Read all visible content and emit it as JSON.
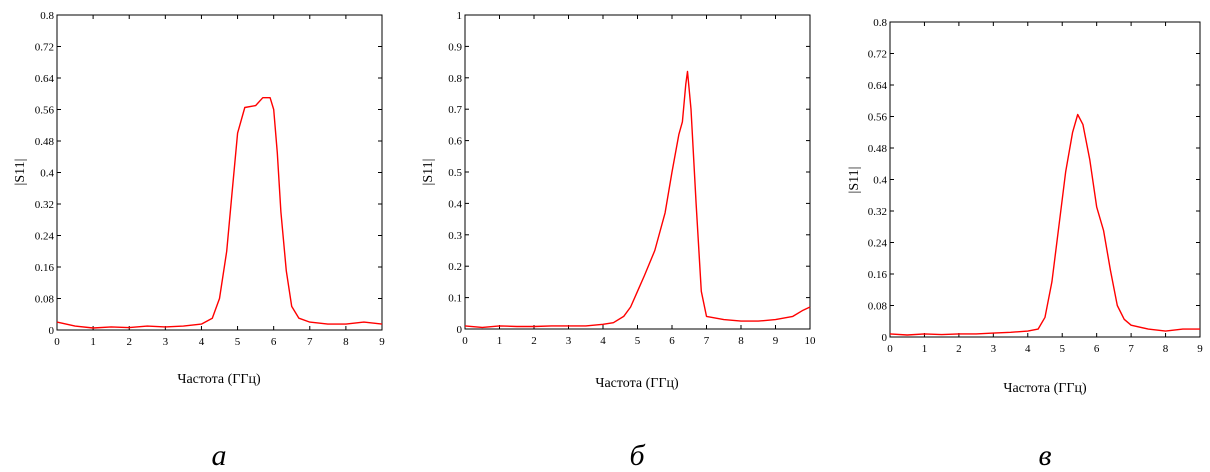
{
  "colors": {
    "curve": "#ff0000",
    "axes": "#000000"
  },
  "chart_data": [
    {
      "type": "line",
      "caption": "а",
      "xlabel": "Частота (ГГц)",
      "ylabel": "|S11|",
      "xlim": [
        0,
        9
      ],
      "ylim": [
        0,
        0.8
      ],
      "xticks": [
        0,
        1,
        2,
        3,
        4,
        5,
        6,
        7,
        8,
        9
      ],
      "yticks": [
        0,
        0.08,
        0.16,
        0.24,
        0.32,
        0.4,
        0.48,
        0.56,
        0.64,
        0.72,
        0.8
      ],
      "xtick_labels": [
        "0",
        "1",
        "2",
        "3",
        "4",
        "5",
        "6",
        "7",
        "8",
        "9"
      ],
      "ytick_labels": [
        "0",
        "0.08",
        "0.16",
        "0.24",
        "0.32",
        "0.4",
        "0.48",
        "0.56",
        "0.64",
        "0.72",
        "0.8"
      ],
      "grid": false,
      "series": [
        {
          "x": [
            0,
            0.5,
            1,
            1.5,
            2,
            2.5,
            3,
            3.5,
            4,
            4.3,
            4.5,
            4.7,
            4.85,
            5.0,
            5.2,
            5.5,
            5.7,
            5.9,
            6.0,
            6.1,
            6.2,
            6.35,
            6.5,
            6.7,
            7,
            7.5,
            8,
            8.5,
            9
          ],
          "y": [
            0.02,
            0.01,
            0.005,
            0.008,
            0.006,
            0.01,
            0.008,
            0.01,
            0.015,
            0.03,
            0.08,
            0.2,
            0.35,
            0.5,
            0.565,
            0.57,
            0.59,
            0.59,
            0.56,
            0.45,
            0.3,
            0.15,
            0.06,
            0.03,
            0.02,
            0.015,
            0.015,
            0.02,
            0.015
          ]
        }
      ]
    },
    {
      "type": "line",
      "caption": "б",
      "xlabel": "Частота (ГГц)",
      "ylabel": "|S11|",
      "xlim": [
        0,
        10
      ],
      "ylim": [
        0,
        1
      ],
      "xticks": [
        0,
        1,
        2,
        3,
        4,
        5,
        6,
        7,
        8,
        9,
        10
      ],
      "yticks": [
        0,
        0.1,
        0.2,
        0.3,
        0.4,
        0.5,
        0.6,
        0.7,
        0.8,
        0.9,
        1
      ],
      "xtick_labels": [
        "0",
        "1",
        "2",
        "3",
        "4",
        "5",
        "6",
        "7",
        "8",
        "9",
        "10"
      ],
      "ytick_labels": [
        "0",
        "0.1",
        "0.2",
        "0.3",
        "0.4",
        "0.5",
        "0.6",
        "0.7",
        "0.8",
        "0.9",
        "1"
      ],
      "grid": false,
      "series": [
        {
          "x": [
            0,
            0.5,
            1,
            1.5,
            2,
            2.5,
            3,
            3.5,
            4,
            4.3,
            4.6,
            4.8,
            5.0,
            5.2,
            5.5,
            5.8,
            6.0,
            6.2,
            6.3,
            6.4,
            6.45,
            6.55,
            6.7,
            6.85,
            7.0,
            7.5,
            8,
            8.5,
            9,
            9.5,
            9.8,
            10
          ],
          "y": [
            0.01,
            0.005,
            0.01,
            0.008,
            0.008,
            0.01,
            0.01,
            0.01,
            0.015,
            0.02,
            0.04,
            0.07,
            0.12,
            0.17,
            0.25,
            0.37,
            0.5,
            0.62,
            0.66,
            0.78,
            0.82,
            0.7,
            0.4,
            0.12,
            0.04,
            0.03,
            0.025,
            0.025,
            0.03,
            0.04,
            0.06,
            0.07
          ]
        }
      ]
    },
    {
      "type": "line",
      "caption": "в",
      "xlabel": "Частота (ГГц)",
      "ylabel": "|S11|",
      "xlim": [
        0,
        9
      ],
      "ylim": [
        0,
        0.8
      ],
      "xticks": [
        0,
        1,
        2,
        3,
        4,
        5,
        6,
        7,
        8,
        9
      ],
      "yticks": [
        0,
        0.08,
        0.16,
        0.24,
        0.32,
        0.4,
        0.48,
        0.56,
        0.64,
        0.72,
        0.8
      ],
      "xtick_labels": [
        "0",
        "1",
        "2",
        "3",
        "4",
        "5",
        "6",
        "7",
        "8",
        "9"
      ],
      "ytick_labels": [
        "0",
        "0.08",
        "0.16",
        "0.24",
        "0.32",
        "0.4",
        "0.48",
        "0.56",
        "0.64",
        "0.72",
        "0.8"
      ],
      "grid": false,
      "series": [
        {
          "x": [
            0,
            0.5,
            1,
            1.5,
            2,
            2.5,
            3,
            3.5,
            4,
            4.3,
            4.5,
            4.7,
            4.9,
            5.1,
            5.3,
            5.45,
            5.6,
            5.8,
            6.0,
            6.2,
            6.4,
            6.6,
            6.8,
            7.0,
            7.5,
            8,
            8.5,
            9
          ],
          "y": [
            0.008,
            0.005,
            0.008,
            0.006,
            0.008,
            0.008,
            0.01,
            0.012,
            0.015,
            0.02,
            0.05,
            0.14,
            0.28,
            0.42,
            0.52,
            0.565,
            0.54,
            0.45,
            0.33,
            0.27,
            0.17,
            0.08,
            0.045,
            0.03,
            0.02,
            0.015,
            0.02,
            0.02
          ]
        }
      ]
    }
  ]
}
